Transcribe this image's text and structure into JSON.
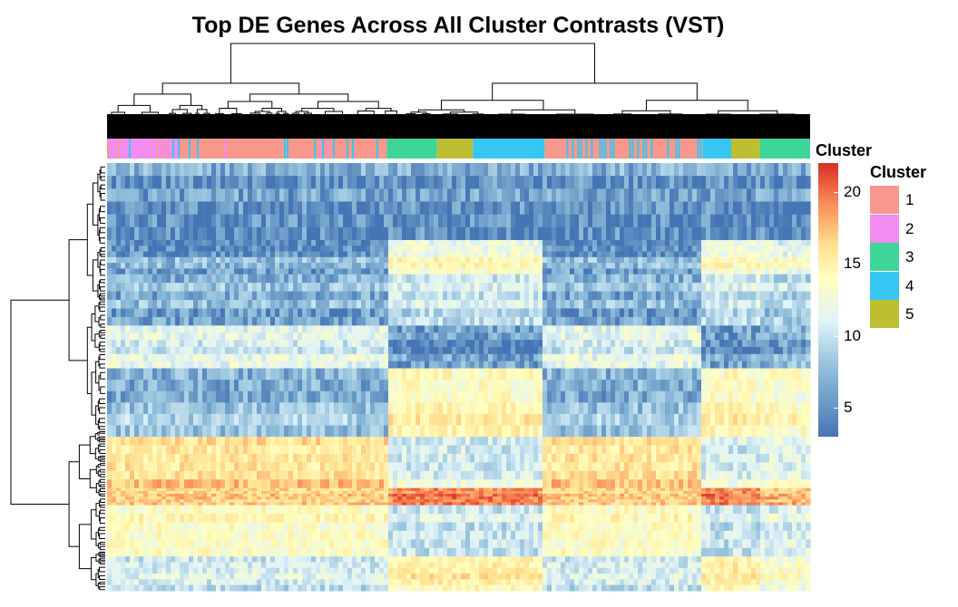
{
  "title": "Top DE Genes Across All Cluster Contrasts (VST)",
  "chart_data": {
    "type": "heatmap",
    "title": "Top DE Genes Across All Cluster Contrasts (VST)",
    "value_scale": {
      "legend_title": "Cluster",
      "ticks": [
        5,
        10,
        15,
        20
      ],
      "range": [
        3,
        22
      ],
      "colors": [
        "#4575B4",
        "#91BFDB",
        "#E0F3F8",
        "#FFFFBF",
        "#FEE090",
        "#FC8D59",
        "#D73027"
      ]
    },
    "cluster_annotation": {
      "legend_title": "Cluster",
      "levels": [
        {
          "label": "1",
          "color": "#F8988C"
        },
        {
          "label": "2",
          "color": "#F28CF0"
        },
        {
          "label": "3",
          "color": "#3DD598"
        },
        {
          "label": "4",
          "color": "#35C7F2"
        },
        {
          "label": "5",
          "color": "#BDBE32"
        }
      ]
    },
    "column_groups": [
      {
        "cluster": "2",
        "width": 0.1
      },
      {
        "cluster": "1",
        "width": 0.29
      },
      {
        "cluster": "3",
        "width": 0.07
      },
      {
        "cluster": "5",
        "width": 0.05
      },
      {
        "cluster": "4",
        "width": 0.1
      },
      {
        "cluster": "1",
        "width": 0.22
      },
      {
        "cluster": "4",
        "width": 0.04
      },
      {
        "cluster": "5",
        "width": 0.04
      },
      {
        "cluster": "3",
        "width": 0.07
      }
    ],
    "row_blocks": [
      {
        "weight": 18,
        "level": [
          5,
          5,
          5,
          5,
          5
        ]
      },
      {
        "weight": 8,
        "level": [
          5,
          12,
          12,
          12,
          11
        ]
      },
      {
        "weight": 12,
        "level": [
          6,
          9,
          9,
          9,
          8
        ]
      },
      {
        "weight": 10,
        "level": [
          9,
          4,
          4,
          4,
          5
        ]
      },
      {
        "weight": 16,
        "level": [
          6,
          13,
          13,
          13,
          12
        ]
      },
      {
        "weight": 12,
        "level": [
          16,
          10,
          10,
          10,
          11
        ]
      },
      {
        "weight": 4,
        "level": [
          17,
          20,
          20,
          20,
          18
        ]
      },
      {
        "weight": 12,
        "level": [
          12,
          8,
          8,
          8,
          9
        ]
      },
      {
        "weight": 8,
        "level": [
          9,
          14,
          14,
          14,
          12
        ]
      }
    ]
  }
}
